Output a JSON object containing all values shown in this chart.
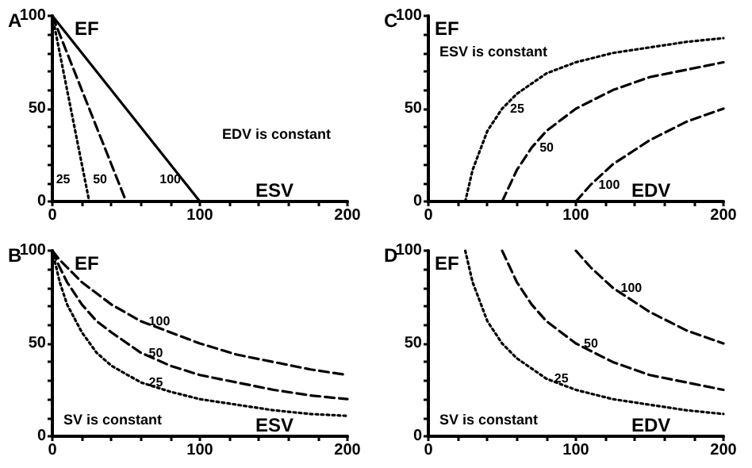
{
  "chart_data": [
    {
      "type": "line",
      "title": "A",
      "xlabel": "ESV",
      "ylabel": "EF",
      "annotations": [
        "EDV is constant"
      ],
      "xlim": [
        0,
        200
      ],
      "ylim": [
        0,
        100
      ],
      "xticks": [
        0,
        {
          "value": 20,
          "label": null
        },
        {
          "value": 40,
          "label": null
        },
        {
          "value": 60,
          "label": null
        },
        {
          "value": 80,
          "label": null
        },
        100,
        {
          "value": 120,
          "label": null
        },
        {
          "value": 140,
          "label": null
        },
        {
          "value": 160,
          "label": null
        },
        {
          "value": 180,
          "label": null
        },
        200
      ],
      "yticks": [
        0,
        {
          "value": 10,
          "label": null
        },
        {
          "value": 20,
          "label": null
        },
        {
          "value": 30,
          "label": null
        },
        {
          "value": 40,
          "label": null
        },
        50,
        {
          "value": 60,
          "label": null
        },
        {
          "value": 70,
          "label": null
        },
        {
          "value": 80,
          "label": null
        },
        {
          "value": 90,
          "label": null
        },
        100
      ],
      "grid": false,
      "legend": false,
      "marker": "none",
      "series": [
        {
          "name": "25",
          "color": "#000000",
          "line_style": "dotted",
          "x": [
            0,
            25
          ],
          "values": [
            100,
            0
          ]
        },
        {
          "name": "50",
          "color": "#000000",
          "line_style": "dashed",
          "x": [
            0,
            50
          ],
          "values": [
            100,
            0
          ]
        },
        {
          "name": "100",
          "color": "#000000",
          "line_style": "solid",
          "x": [
            0,
            100
          ],
          "values": [
            100,
            0
          ]
        }
      ]
    },
    {
      "type": "line",
      "title": "C",
      "xlabel": "EDV",
      "ylabel": "EF",
      "annotations": [
        "ESV is constant"
      ],
      "xlim": [
        0,
        200
      ],
      "ylim": [
        0,
        100
      ],
      "xticks": [
        0,
        {
          "value": 20,
          "label": null
        },
        {
          "value": 40,
          "label": null
        },
        {
          "value": 60,
          "label": null
        },
        {
          "value": 80,
          "label": null
        },
        100,
        {
          "value": 120,
          "label": null
        },
        {
          "value": 140,
          "label": null
        },
        {
          "value": 160,
          "label": null
        },
        {
          "value": 180,
          "label": null
        },
        200
      ],
      "yticks": [
        0,
        {
          "value": 10,
          "label": null
        },
        {
          "value": 20,
          "label": null
        },
        {
          "value": 30,
          "label": null
        },
        {
          "value": 40,
          "label": null
        },
        50,
        {
          "value": 60,
          "label": null
        },
        {
          "value": 70,
          "label": null
        },
        {
          "value": 80,
          "label": null
        },
        {
          "value": 90,
          "label": null
        },
        100
      ],
      "grid": false,
      "legend": false,
      "marker": "none",
      "series": [
        {
          "name": "25",
          "color": "#000000",
          "line_style": "dotted",
          "x": [
            25,
            30,
            40,
            50,
            60,
            80,
            100,
            125,
            150,
            175,
            200
          ],
          "values": [
            0,
            17,
            38,
            50,
            58,
            69,
            75,
            80,
            83,
            86,
            88
          ]
        },
        {
          "name": "50",
          "color": "#000000",
          "line_style": "dashed",
          "x": [
            50,
            60,
            70,
            80,
            100,
            125,
            150,
            175,
            200
          ],
          "values": [
            0,
            17,
            29,
            38,
            50,
            60,
            67,
            71,
            75
          ]
        },
        {
          "name": "100",
          "color": "#000000",
          "line_style": "dashed",
          "x": [
            100,
            110,
            125,
            150,
            175,
            200
          ],
          "values": [
            0,
            9,
            20,
            33,
            43,
            50
          ]
        }
      ]
    },
    {
      "type": "line",
      "title": "B",
      "xlabel": "ESV",
      "ylabel": "EF",
      "annotations": [
        "SV is constant"
      ],
      "xlim": [
        0,
        200
      ],
      "ylim": [
        0,
        100
      ],
      "xticks": [
        0,
        {
          "value": 20,
          "label": null
        },
        {
          "value": 40,
          "label": null
        },
        {
          "value": 60,
          "label": null
        },
        {
          "value": 80,
          "label": null
        },
        100,
        {
          "value": 120,
          "label": null
        },
        {
          "value": 140,
          "label": null
        },
        {
          "value": 160,
          "label": null
        },
        {
          "value": 180,
          "label": null
        },
        200
      ],
      "yticks": [
        0,
        {
          "value": 10,
          "label": null
        },
        {
          "value": 20,
          "label": null
        },
        {
          "value": 30,
          "label": null
        },
        {
          "value": 40,
          "label": null
        },
        50,
        {
          "value": 60,
          "label": null
        },
        {
          "value": 70,
          "label": null
        },
        {
          "value": 80,
          "label": null
        },
        {
          "value": 90,
          "label": null
        },
        100
      ],
      "grid": false,
      "legend": false,
      "marker": "none",
      "series": [
        {
          "name": "25",
          "color": "#000000",
          "line_style": "dotted",
          "x": [
            0,
            5,
            10,
            20,
            30,
            40,
            60,
            80,
            100,
            125,
            150,
            175,
            200
          ],
          "values": [
            100,
            83,
            71,
            56,
            45,
            38,
            29,
            24,
            20,
            17,
            14,
            12,
            11
          ]
        },
        {
          "name": "50",
          "color": "#000000",
          "line_style": "dashed",
          "x": [
            0,
            5,
            10,
            20,
            30,
            40,
            60,
            80,
            100,
            125,
            150,
            175,
            200
          ],
          "values": [
            100,
            91,
            83,
            71,
            62,
            56,
            45,
            38,
            33,
            29,
            25,
            22,
            20
          ]
        },
        {
          "name": "100",
          "color": "#000000",
          "line_style": "dashed",
          "x": [
            0,
            5,
            10,
            20,
            30,
            40,
            60,
            80,
            100,
            125,
            150,
            175,
            200
          ],
          "values": [
            100,
            95,
            91,
            83,
            77,
            71,
            62,
            56,
            50,
            44,
            40,
            36,
            33
          ]
        }
      ]
    },
    {
      "type": "line",
      "title": "D",
      "xlabel": "EDV",
      "ylabel": "EF",
      "annotations": [
        "SV is constant"
      ],
      "xlim": [
        0,
        200
      ],
      "ylim": [
        0,
        100
      ],
      "xticks": [
        0,
        {
          "value": 20,
          "label": null
        },
        {
          "value": 40,
          "label": null
        },
        {
          "value": 60,
          "label": null
        },
        {
          "value": 80,
          "label": null
        },
        100,
        {
          "value": 120,
          "label": null
        },
        {
          "value": 140,
          "label": null
        },
        {
          "value": 160,
          "label": null
        },
        {
          "value": 180,
          "label": null
        },
        200
      ],
      "yticks": [
        0,
        {
          "value": 10,
          "label": null
        },
        {
          "value": 20,
          "label": null
        },
        {
          "value": 30,
          "label": null
        },
        {
          "value": 40,
          "label": null
        },
        50,
        {
          "value": 60,
          "label": null
        },
        {
          "value": 70,
          "label": null
        },
        {
          "value": 80,
          "label": null
        },
        {
          "value": 90,
          "label": null
        },
        100
      ],
      "grid": false,
      "legend": false,
      "marker": "none",
      "series": [
        {
          "name": "25",
          "color": "#000000",
          "line_style": "dotted",
          "x": [
            25,
            30,
            40,
            50,
            60,
            80,
            100,
            125,
            150,
            175,
            200
          ],
          "values": [
            100,
            83,
            62,
            50,
            42,
            31,
            25,
            20,
            17,
            14,
            12
          ]
        },
        {
          "name": "50",
          "color": "#000000",
          "line_style": "dashed",
          "x": [
            50,
            60,
            70,
            80,
            100,
            125,
            150,
            175,
            200
          ],
          "values": [
            100,
            83,
            71,
            62,
            50,
            40,
            33,
            29,
            25
          ]
        },
        {
          "name": "100",
          "color": "#000000",
          "line_style": "dashed",
          "x": [
            100,
            110,
            125,
            150,
            175,
            200
          ],
          "values": [
            100,
            91,
            80,
            67,
            57,
            50
          ]
        }
      ]
    }
  ]
}
